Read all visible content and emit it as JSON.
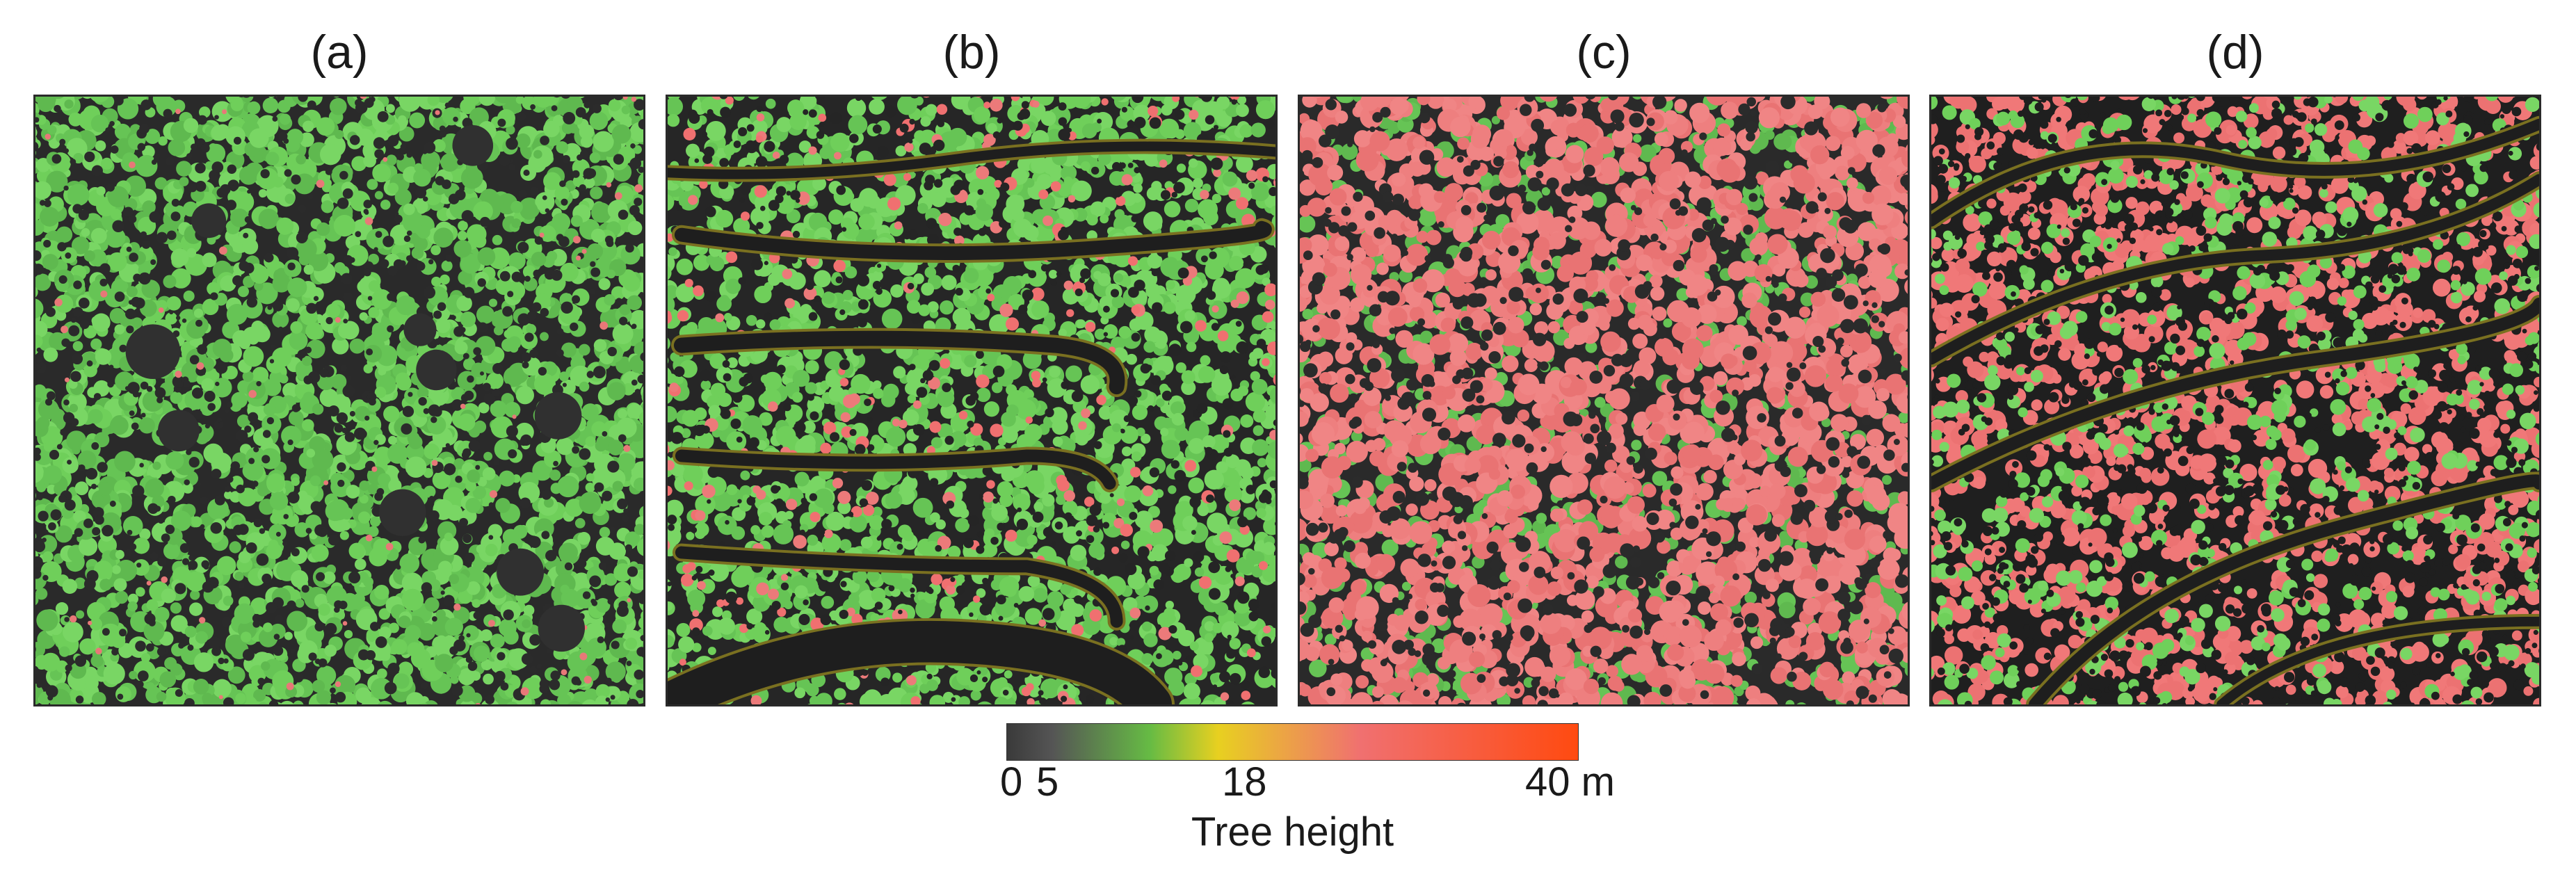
{
  "figure": {
    "panels": [
      {
        "label": "(a)",
        "description": "canopy height map, mostly green low canopy"
      },
      {
        "label": "(b)",
        "description": "canopy height map with winding contour terraces"
      },
      {
        "label": "(c)",
        "description": "canopy height map dominated by tall pink crowns"
      },
      {
        "label": "(d)",
        "description": "canopy height map with diagonal drainage channels"
      }
    ],
    "colorbar": {
      "title": "Tree height",
      "ticks": [
        {
          "value": 0,
          "text": "0"
        },
        {
          "value": 5,
          "text": "5"
        },
        {
          "value": 18,
          "text": "18"
        },
        {
          "value": 40,
          "text": "40 m"
        }
      ],
      "range": [
        0,
        40
      ],
      "colors": {
        "low": "#3a3a3a",
        "mid_low": "#66bb44",
        "yellow": "#e8d020",
        "pink": "#f07070",
        "high": "#ff4a10"
      }
    }
  }
}
